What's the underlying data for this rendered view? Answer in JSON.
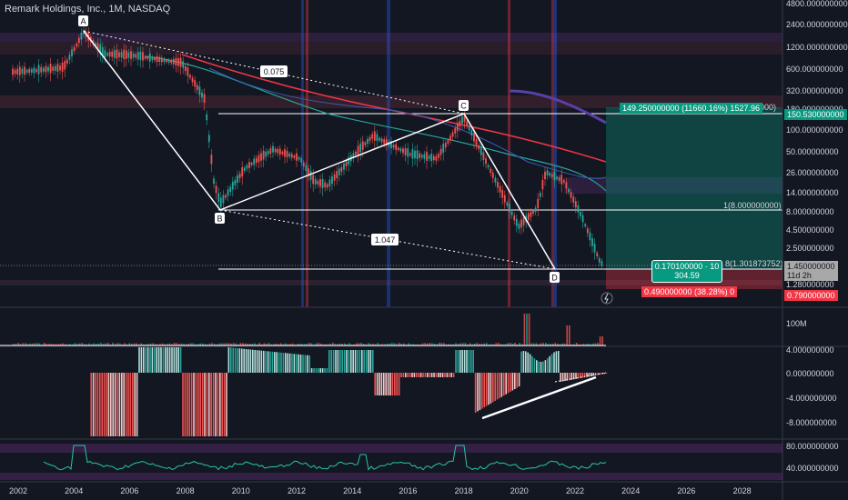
{
  "header": {
    "title": "Remark Holdings, Inc., 1M, NASDAQ"
  },
  "price_axis": {
    "labels": [
      "4800.000000000",
      "2400.000000000",
      "1200.000000000",
      "600.000000000",
      "320.000000000",
      "180.000000000",
      "100.000000000",
      "50.000000000",
      "26.000000000",
      "14.000000000",
      "8.000000000",
      "4.500000000",
      "2.500000000",
      "1.450000000",
      "1.280000000",
      "0.790000000"
    ]
  },
  "volume_axis": {
    "label": "100M"
  },
  "osc_axis": {
    "labels": [
      "4.000000000",
      "0.000000000",
      "-4.000000000",
      "-8.000000000"
    ]
  },
  "rsi_axis": {
    "labels": [
      "80.000000000",
      "40.000000000"
    ]
  },
  "time_axis": {
    "labels": [
      "2002",
      "2004",
      "2006",
      "2008",
      "2010",
      "2012",
      "2014",
      "2016",
      "2018",
      "2020",
      "2022",
      "2024",
      "2026",
      "2028"
    ]
  },
  "pattern": {
    "points": [
      "A",
      "B",
      "C",
      "D"
    ],
    "ratio_ab_c": "0.075",
    "ratio_bd": "1.047"
  },
  "annotations": {
    "target_label": "149.250000000 (11660.16%) 1527.96",
    "target_tail": "00000)",
    "fib_label": "1(8.000000000)",
    "position_label_1": "0.170100000 · 10",
    "position_label_2": "304.59",
    "fib_d_label": "8(1.301873752)",
    "stop_label": "0.490000000 (38.28%) 0",
    "current_price": "1.450000000",
    "countdown": "11d 2h",
    "target_price": "150.530000000",
    "stop_price": "0.790000000"
  },
  "colors": {
    "background": "#131722",
    "up": "#26a69a",
    "down": "#ef5350",
    "target_green": "#089981",
    "stop_red": "#f23645"
  }
}
